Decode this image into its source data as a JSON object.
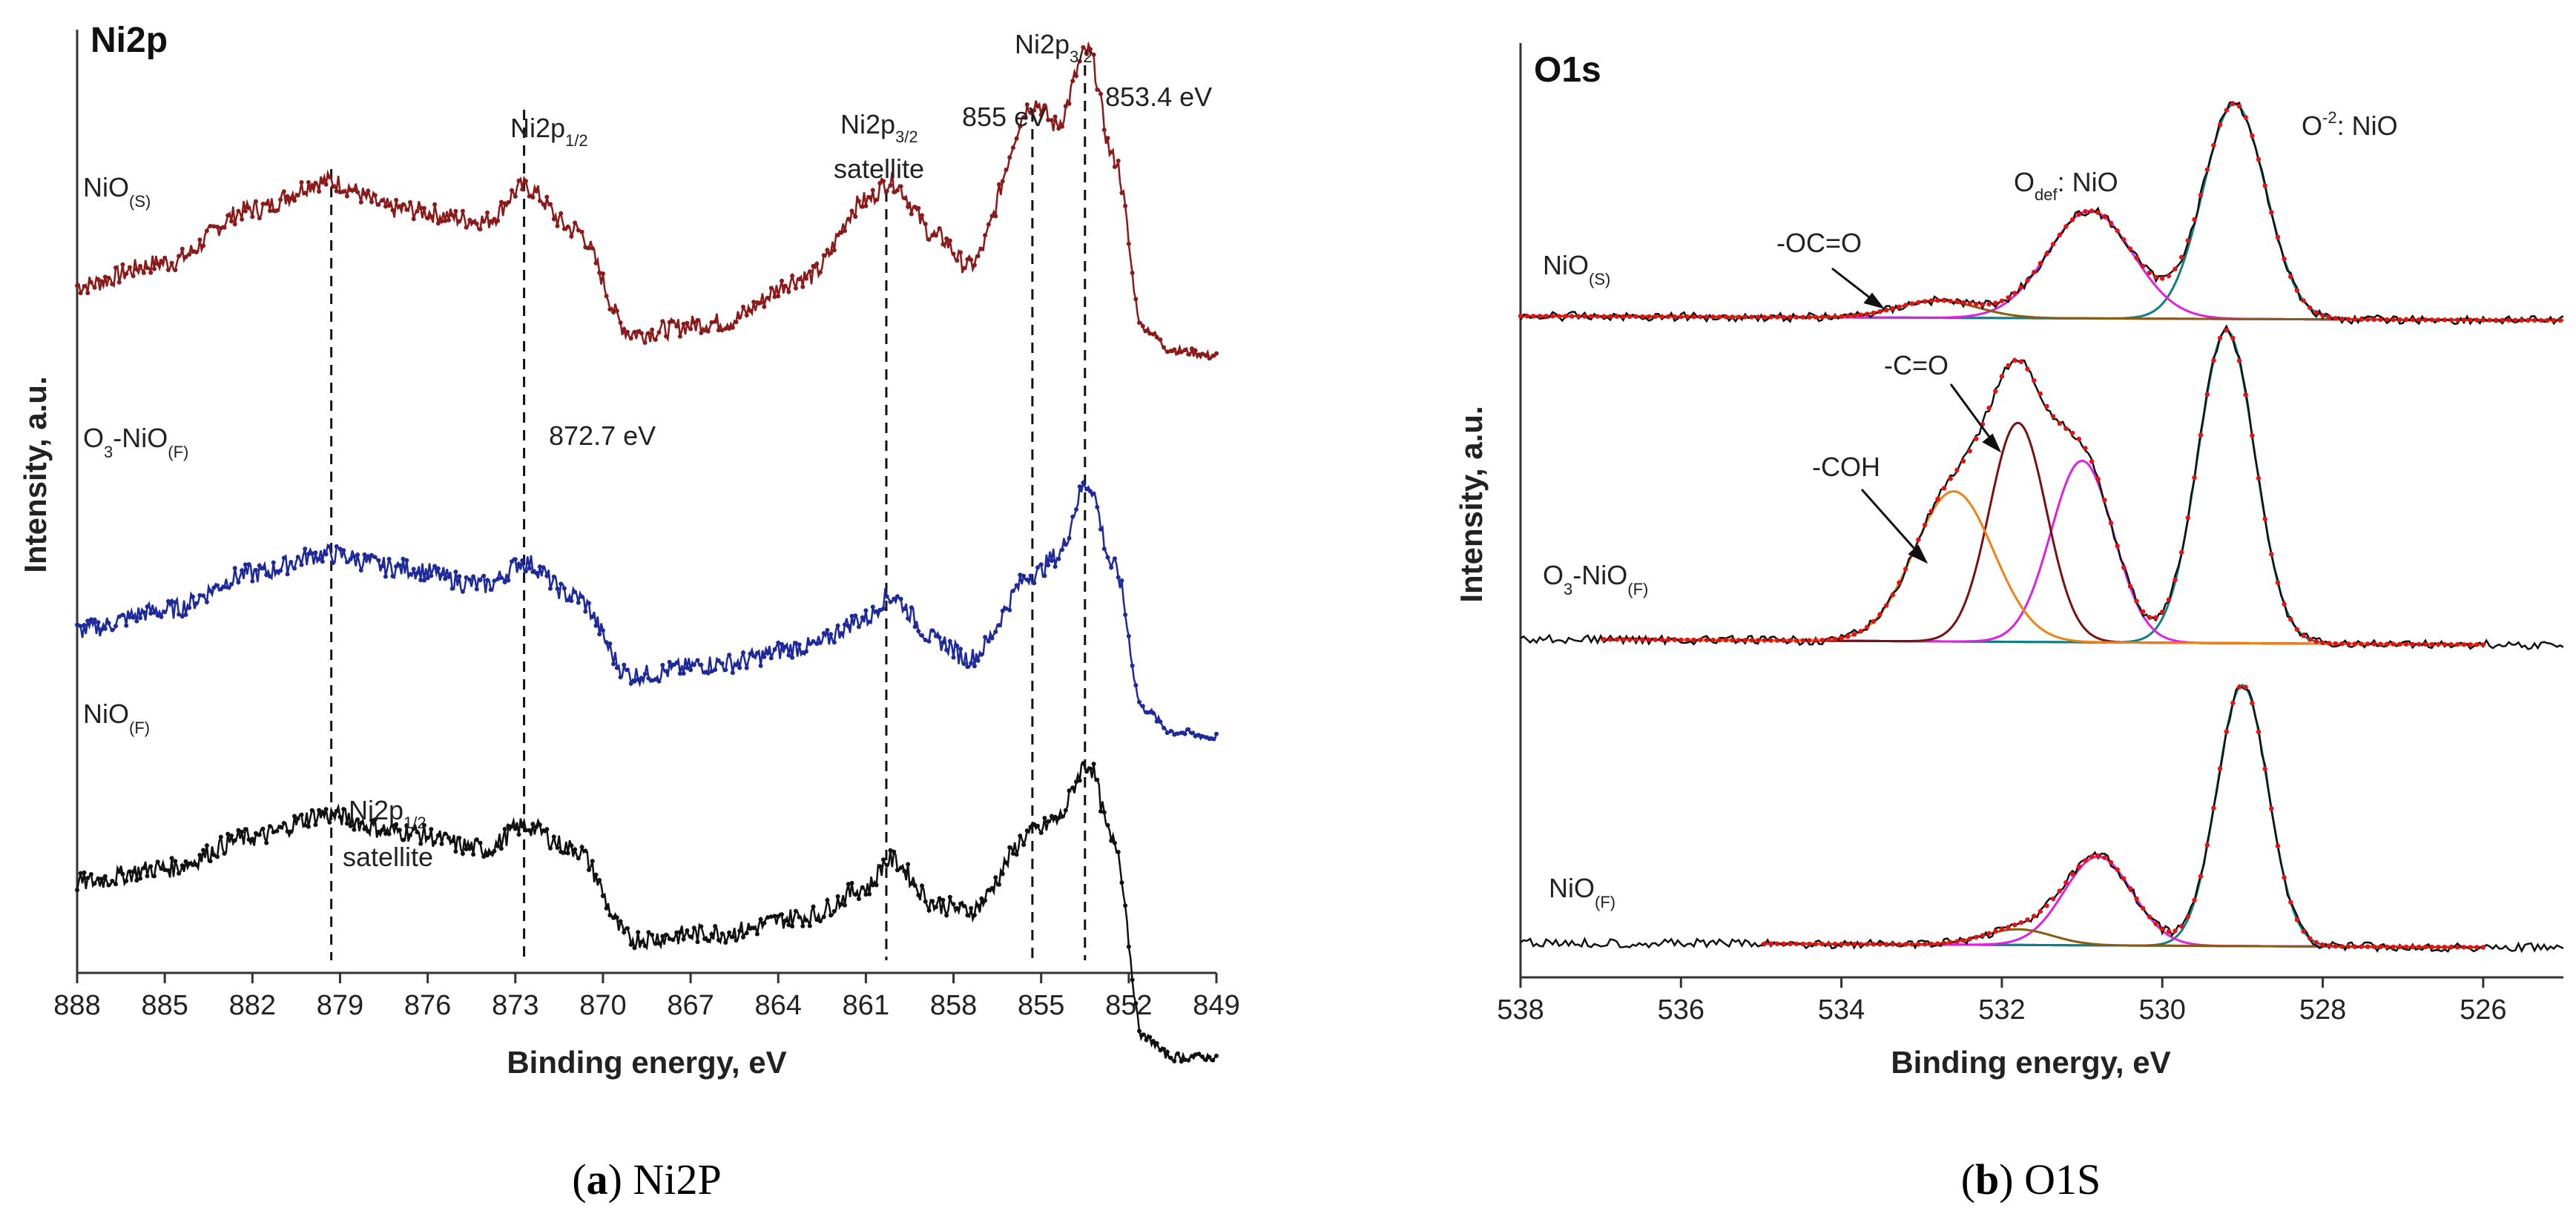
{
  "chart_data": [
    {
      "type": "line",
      "panel": "a",
      "title": "Ni2p",
      "xlabel": "Binding energy, eV",
      "ylabel": "Intensity, a.u.",
      "xlim": [
        888,
        849
      ],
      "xticks": [
        888,
        885,
        882,
        879,
        876,
        873,
        870,
        867,
        864,
        861,
        858,
        855,
        852,
        849
      ],
      "series": [
        {
          "name": "NiO(S)",
          "label_main": "NiO",
          "label_sub": "(S)",
          "color": "#8b1a1a",
          "x": [
            888,
            885,
            882,
            879.5,
            877,
            874,
            872.7,
            871,
            869,
            866,
            863,
            861,
            860.2,
            858.5,
            857.5,
            855.2,
            854.5,
            853.4,
            852.5,
            851.5,
            850.5,
            849
          ],
          "y": [
            0.25,
            0.33,
            0.52,
            0.62,
            0.52,
            0.48,
            0.6,
            0.45,
            0.08,
            0.12,
            0.28,
            0.55,
            0.62,
            0.42,
            0.32,
            0.9,
            0.82,
            1.08,
            0.7,
            0.1,
            0.02,
            0.0
          ]
        },
        {
          "name": "O3-NiO(F)",
          "label_main": "O",
          "label_sub": "3",
          "label_mid": "-NiO",
          "label_sub2": "(F)",
          "color": "#1f2a9a",
          "x": [
            888,
            885,
            882,
            879.5,
            877,
            874,
            872.7,
            871,
            869,
            866,
            863,
            861,
            860.2,
            858.5,
            857.5,
            855.2,
            854.5,
            853.4,
            852.5,
            851.5,
            850.5,
            849
          ],
          "y": [
            0.08,
            0.15,
            0.28,
            0.35,
            0.3,
            0.24,
            0.32,
            0.2,
            -0.08,
            -0.04,
            0.02,
            0.12,
            0.2,
            0.04,
            -0.02,
            0.28,
            0.34,
            0.6,
            0.3,
            -0.2,
            -0.28,
            -0.3
          ]
        },
        {
          "name": "NiO(F)",
          "label_main": "NiO",
          "label_sub": "(F)",
          "color": "#111111",
          "x": [
            888,
            885,
            882,
            879.5,
            877,
            874,
            872.7,
            871,
            869,
            866,
            863,
            861,
            860.2,
            858.5,
            857.5,
            855.2,
            854.5,
            853.4,
            852.5,
            851.5,
            850.5,
            849
          ],
          "y": [
            0.0,
            0.05,
            0.16,
            0.24,
            0.18,
            0.12,
            0.2,
            0.12,
            -0.2,
            -0.18,
            -0.12,
            -0.02,
            0.08,
            -0.08,
            -0.1,
            0.18,
            0.22,
            0.42,
            0.14,
            -0.55,
            -0.62,
            -0.62
          ]
        }
      ],
      "ref_lines": [
        879.3,
        872.7,
        860.3,
        855.3,
        853.5
      ],
      "annotations": [
        {
          "main": "Ni2p",
          "sub": "1/2"
        },
        {
          "main": "Ni2p",
          "sub": "3/2",
          "line2": "satellite"
        },
        {
          "main": "855 eV"
        },
        {
          "main": "Ni2p",
          "sub": "3/2"
        },
        {
          "main": "853.4 eV"
        },
        {
          "main": "872.7 eV"
        },
        {
          "main": "Ni2p",
          "sub": "1/2",
          "line2": "satellite"
        }
      ]
    },
    {
      "type": "line",
      "panel": "b",
      "title": "O1s",
      "xlabel": "Binding energy, eV",
      "ylabel": "Intensity, a.u.",
      "xlim": [
        538,
        525
      ],
      "xticks": [
        538,
        536,
        534,
        532,
        530,
        528,
        526
      ],
      "samples": [
        {
          "name": "NiO(S)",
          "label_main": "NiO",
          "label_sub": "(S)",
          "components": [
            {
              "name": "O-2: NiO",
              "center": 529.1,
              "height": 1.0,
              "width": 0.55
            },
            {
              "name": "Odef: NiO",
              "center": 530.9,
              "height": 0.5,
              "width": 0.75
            },
            {
              "name": "-OC=O",
              "center": 532.8,
              "height": 0.08,
              "width": 0.7
            }
          ]
        },
        {
          "name": "O3-NiO(F)",
          "label_main": "O",
          "label_sub": "3",
          "label_mid": "-NiO",
          "label_sub2": "(F)",
          "components": [
            {
              "name": "O-2: NiO",
              "center": 529.2,
              "height": 1.0,
              "width": 0.5
            },
            {
              "name": "Odef: NiO",
              "center": 531.0,
              "height": 0.58,
              "width": 0.55
            },
            {
              "name": "-C=O",
              "center": 531.8,
              "height": 0.7,
              "width": 0.5
            },
            {
              "name": "-COH",
              "center": 532.6,
              "height": 0.48,
              "width": 0.7
            }
          ]
        },
        {
          "name": "NiO(F)",
          "label_main": "NiO",
          "label_sub": "(F)",
          "components": [
            {
              "name": "O-2: NiO",
              "center": 529.0,
              "height": 1.0,
              "width": 0.45
            },
            {
              "name": "Odef: NiO",
              "center": 530.8,
              "height": 0.34,
              "width": 0.6
            },
            {
              "name": "-OC=O",
              "center": 531.8,
              "height": 0.06,
              "width": 0.6
            }
          ]
        }
      ],
      "component_colors": {
        "O-2: NiO": "#0f8080",
        "Odef: NiO": "#e020e0",
        "-C=O": "#7a1010",
        "-COH": "#f08010",
        "-OC=O": "#8a5a10",
        "background": "#1530d0",
        "fit": "#e81010",
        "experimental": "#111111"
      },
      "annotations": [
        {
          "main": "O",
          "sup": "-2",
          "tail": ": NiO"
        },
        {
          "main": "O",
          "sub": "def",
          "tail": ": NiO"
        },
        {
          "main": "-OC=O"
        },
        {
          "main": "-C=O"
        },
        {
          "main": "-COH"
        }
      ]
    }
  ],
  "captions": {
    "a": {
      "letter": "a",
      "text": "Ni2P"
    },
    "b": {
      "letter": "b",
      "text": "O1S"
    }
  }
}
